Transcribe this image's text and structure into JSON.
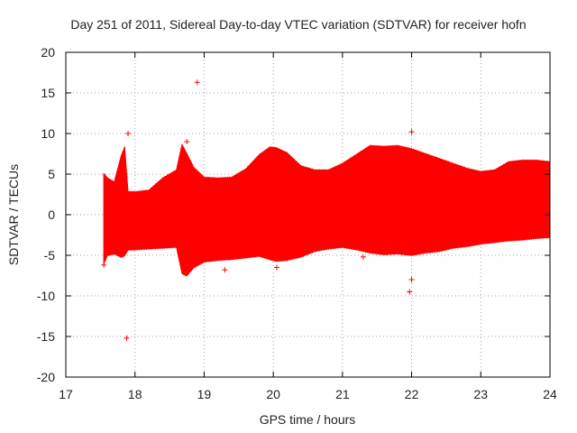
{
  "chart_data": {
    "type": "scatter",
    "title": "Day 251 of 2011, Sidereal Day-to-day VTEC variation (SDTVAR) for receiver hofn",
    "xlabel": "GPS time / hours",
    "ylabel": "SDTVAR / TECUs",
    "xlim": [
      17,
      24
    ],
    "ylim": [
      -20,
      20
    ],
    "grid": true,
    "color": "#ff0000",
    "x_ticks": [
      "17",
      "18",
      "19",
      "20",
      "21",
      "22",
      "23",
      "24"
    ],
    "y_ticks": [
      "20",
      "15",
      "10",
      "5",
      "0",
      "-5",
      "-10",
      "-15",
      "-20"
    ],
    "series": [
      {
        "name": "SDTVAR error band",
        "kind": "band",
        "x": [
          17.55,
          17.6,
          17.7,
          17.8,
          17.85,
          17.9,
          18.0,
          18.2,
          18.4,
          18.6,
          18.68,
          18.75,
          18.85,
          19.0,
          19.2,
          19.4,
          19.6,
          19.8,
          19.95,
          20.05,
          20.2,
          20.4,
          20.6,
          20.8,
          21.0,
          21.2,
          21.4,
          21.6,
          21.8,
          22.0,
          22.2,
          22.4,
          22.6,
          22.8,
          23.0,
          23.2,
          23.4,
          23.6,
          23.8,
          24.0
        ],
        "upper": [
          5.0,
          4.5,
          4.0,
          7.2,
          8.3,
          2.8,
          2.8,
          3.0,
          4.5,
          5.5,
          8.6,
          7.5,
          5.8,
          4.6,
          4.5,
          4.6,
          5.6,
          7.4,
          8.3,
          8.2,
          7.6,
          6.0,
          5.5,
          5.5,
          6.3,
          7.4,
          8.5,
          8.4,
          8.5,
          8.1,
          7.5,
          6.9,
          6.3,
          5.7,
          5.3,
          5.5,
          6.5,
          6.7,
          6.7,
          6.5
        ],
        "lower": [
          -6.0,
          -5.0,
          -4.8,
          -5.2,
          -5.0,
          -4.3,
          -4.3,
          -4.2,
          -4.1,
          -4.0,
          -7.2,
          -7.5,
          -6.5,
          -5.8,
          -5.6,
          -5.5,
          -5.3,
          -5.1,
          -5.5,
          -5.7,
          -5.6,
          -5.2,
          -4.5,
          -4.2,
          -4.0,
          -4.3,
          -4.7,
          -4.9,
          -4.8,
          -5.0,
          -4.7,
          -4.5,
          -4.1,
          -3.9,
          -3.6,
          -3.4,
          -3.2,
          -3.1,
          -2.9,
          -2.8
        ]
      },
      {
        "name": "SDTVAR outliers",
        "kind": "points",
        "x": [
          17.9,
          18.9,
          17.88,
          22.0,
          22.0,
          21.97,
          19.3,
          20.05,
          18.75,
          17.55,
          21.3
        ],
        "y": [
          10.0,
          16.3,
          -15.2,
          10.2,
          -8.0,
          -9.5,
          -6.8,
          -6.5,
          9.0,
          -6.2,
          -5.2
        ]
      }
    ]
  }
}
